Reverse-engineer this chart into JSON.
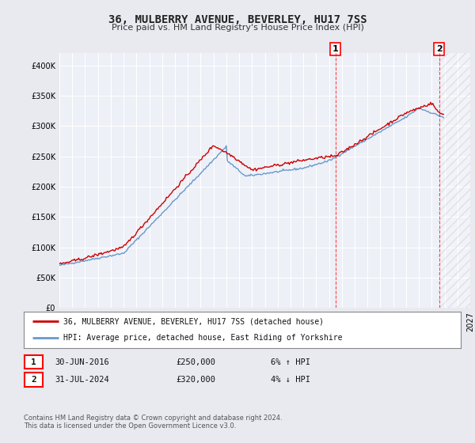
{
  "title": "36, MULBERRY AVENUE, BEVERLEY, HU17 7SS",
  "subtitle": "Price paid vs. HM Land Registry's House Price Index (HPI)",
  "ylim": [
    0,
    420000
  ],
  "yticks": [
    0,
    50000,
    100000,
    150000,
    200000,
    250000,
    300000,
    350000,
    400000
  ],
  "bg_color": "#e8eaf0",
  "plot_bg_color": "#eef0f7",
  "grid_color": "#ffffff",
  "line_color_red": "#cc0000",
  "line_color_blue": "#6699cc",
  "marker1_x": 2016.5,
  "marker1_label": "1",
  "marker2_x": 2024.58,
  "marker2_label": "2",
  "legend_line1": "36, MULBERRY AVENUE, BEVERLEY, HU17 7SS (detached house)",
  "legend_line2": "HPI: Average price, detached house, East Riding of Yorkshire",
  "table_row1": [
    "1",
    "30-JUN-2016",
    "£250,000",
    "6% ↑ HPI"
  ],
  "table_row2": [
    "2",
    "31-JUL-2024",
    "£320,000",
    "4% ↓ HPI"
  ],
  "footer": "Contains HM Land Registry data © Crown copyright and database right 2024.\nThis data is licensed under the Open Government Licence v3.0.",
  "xmin": 1995,
  "xmax": 2027
}
